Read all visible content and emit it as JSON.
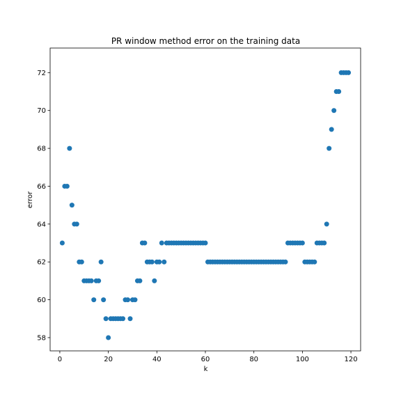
{
  "chart_data": {
    "type": "scatter",
    "title": "PR window method error on the training data",
    "xlabel": "k",
    "ylabel": "error",
    "xlim": [
      -4,
      124
    ],
    "ylim": [
      57.3,
      73.3
    ],
    "xticks": [
      0,
      20,
      40,
      60,
      80,
      100,
      120
    ],
    "yticks": [
      58,
      60,
      62,
      64,
      66,
      68,
      70,
      72
    ],
    "grid": false,
    "color": "#1f77b4",
    "series": [
      {
        "x": [
          1,
          2,
          3,
          4,
          5,
          6,
          7,
          8,
          9,
          10,
          11,
          12,
          13,
          14,
          15,
          16,
          17,
          18,
          19,
          20,
          21,
          22,
          23,
          24,
          25,
          26,
          27,
          28,
          29,
          30,
          31,
          32,
          33,
          34,
          35,
          36,
          37,
          38,
          39,
          40,
          41,
          42,
          43,
          44,
          45,
          46,
          47,
          48,
          49,
          50,
          51,
          52,
          53,
          54,
          55,
          56,
          57,
          58,
          59,
          60,
          61,
          62,
          63,
          64,
          65,
          66,
          67,
          68,
          69,
          70,
          71,
          72,
          73,
          74,
          75,
          76,
          77,
          78,
          79,
          80,
          81,
          82,
          83,
          84,
          85,
          86,
          87,
          88,
          89,
          90,
          91,
          92,
          93,
          94,
          95,
          96,
          97,
          98,
          99,
          100,
          101,
          102,
          103,
          104,
          105,
          106,
          107,
          108,
          109,
          110,
          111,
          112,
          113,
          114,
          115,
          116,
          117,
          118,
          119
        ],
        "y": [
          63,
          66,
          66,
          68,
          65,
          64,
          64,
          62,
          62,
          61,
          61,
          61,
          61,
          60,
          61,
          61,
          62,
          60,
          59,
          58,
          59,
          59,
          59,
          59,
          59,
          59,
          60,
          60,
          59,
          60,
          60,
          61,
          61,
          63,
          63,
          62,
          62,
          62,
          61,
          62,
          62,
          63,
          62,
          63,
          63,
          63,
          63,
          63,
          63,
          63,
          63,
          63,
          63,
          63,
          63,
          63,
          63,
          63,
          63,
          63,
          62,
          62,
          62,
          62,
          62,
          62,
          62,
          62,
          62,
          62,
          62,
          62,
          62,
          62,
          62,
          62,
          62,
          62,
          62,
          62,
          62,
          62,
          62,
          62,
          62,
          62,
          62,
          62,
          62,
          62,
          62,
          62,
          62,
          63,
          63,
          63,
          63,
          63,
          63,
          63,
          62,
          62,
          62,
          62,
          62,
          63,
          63,
          63,
          63,
          64,
          68,
          69,
          70,
          71,
          71,
          72,
          72,
          72,
          72
        ]
      }
    ]
  }
}
